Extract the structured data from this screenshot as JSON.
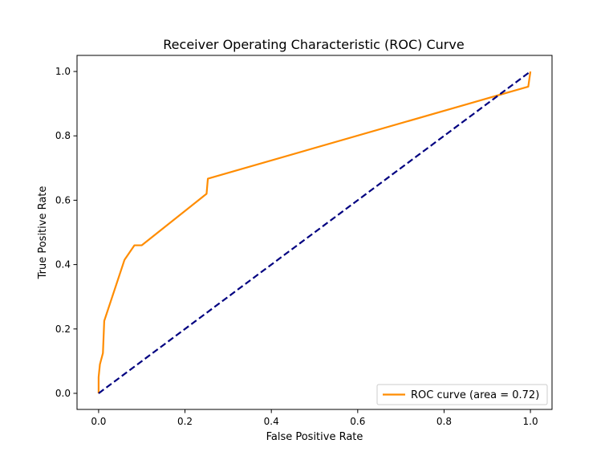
{
  "chart_data": {
    "type": "line",
    "title": "Receiver Operating Characteristic (ROC) Curve",
    "xlabel": "False Positive Rate",
    "ylabel": "True Positive Rate",
    "xlim": [
      -0.05,
      1.05
    ],
    "ylim": [
      -0.05,
      1.05
    ],
    "x_ticks": [
      0.0,
      0.2,
      0.4,
      0.6,
      0.8,
      1.0
    ],
    "y_ticks": [
      0.0,
      0.2,
      0.4,
      0.6,
      0.8,
      1.0
    ],
    "x_tick_labels": [
      "0.0",
      "0.2",
      "0.4",
      "0.6",
      "0.8",
      "1.0"
    ],
    "y_tick_labels": [
      "0.0",
      "0.2",
      "0.4",
      "0.6",
      "0.8",
      "1.0"
    ],
    "grid": false,
    "legend_position": "lower-right",
    "series": [
      {
        "name": "ROC curve (area = 0.72)",
        "color": "#ff8c00",
        "style": "solid",
        "x": [
          0.0,
          0.0,
          0.003,
          0.01,
          0.013,
          0.06,
          0.083,
          0.1,
          0.25,
          0.253,
          0.995,
          1.0
        ],
        "y": [
          0.0,
          0.05,
          0.09,
          0.125,
          0.225,
          0.415,
          0.46,
          0.46,
          0.62,
          0.667,
          0.953,
          1.0
        ]
      },
      {
        "name": "",
        "color": "#000080",
        "style": "dashed",
        "x": [
          0.0,
          1.0
        ],
        "y": [
          0.0,
          1.0
        ]
      }
    ]
  }
}
